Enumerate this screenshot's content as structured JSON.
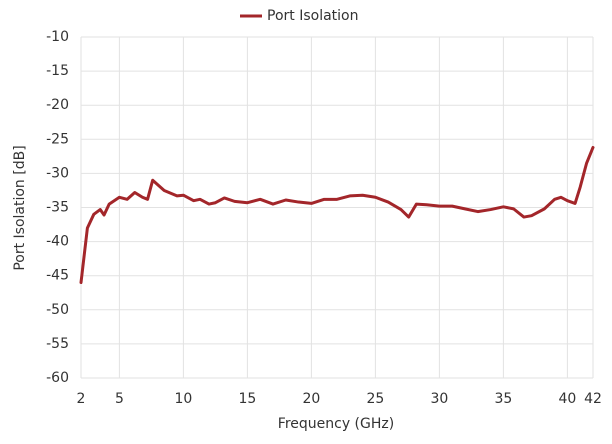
{
  "chart_data": {
    "type": "line",
    "legend": "top",
    "x_label": "Frequency (GHz)",
    "y_label": "Port Isolation [dB]",
    "x": [
      2,
      2.5,
      3,
      3.5,
      3.8,
      4.2,
      5,
      5.6,
      6.2,
      6.8,
      7.2,
      7.6,
      8.5,
      9.5,
      10,
      10.8,
      11.3,
      12,
      12.5,
      13.2,
      14,
      15,
      16,
      17,
      18,
      19,
      20,
      21,
      22,
      23,
      24,
      25,
      26,
      27,
      27.6,
      28.2,
      29,
      30,
      31,
      32,
      33,
      34,
      35,
      35.8,
      36.6,
      37.2,
      38.2,
      39,
      39.5,
      40,
      40.6,
      41,
      41.5,
      42
    ],
    "series": [
      {
        "name": "Port Isolation",
        "color": "#a3262a",
        "values": [
          -46,
          -38,
          -36,
          -35.3,
          -36.1,
          -34.5,
          -33.5,
          -33.8,
          -32.8,
          -33.5,
          -33.8,
          -31,
          -32.5,
          -33.3,
          -33.2,
          -34,
          -33.8,
          -34.5,
          -34.3,
          -33.6,
          -34.1,
          -34.3,
          -33.8,
          -34.5,
          -33.9,
          -34.2,
          -34.4,
          -33.8,
          -33.8,
          -33.3,
          -33.2,
          -33.5,
          -34.2,
          -35.3,
          -36.4,
          -34.5,
          -34.6,
          -34.8,
          -34.8,
          -35.2,
          -35.6,
          -35.3,
          -34.9,
          -35.2,
          -36.4,
          -36.2,
          -35.2,
          -33.8,
          -33.5,
          -34,
          -34.4,
          -32,
          -28.5,
          -26.2
        ]
      }
    ],
    "xlim": [
      2,
      42
    ],
    "xticks": [
      2,
      5,
      10,
      15,
      20,
      25,
      30,
      35,
      40,
      42
    ],
    "ylim": [
      -60,
      -10
    ],
    "yticks": [
      -10,
      -15,
      -20,
      -25,
      -30,
      -35,
      -40,
      -45,
      -50,
      -55,
      -60
    ],
    "grid": true
  }
}
